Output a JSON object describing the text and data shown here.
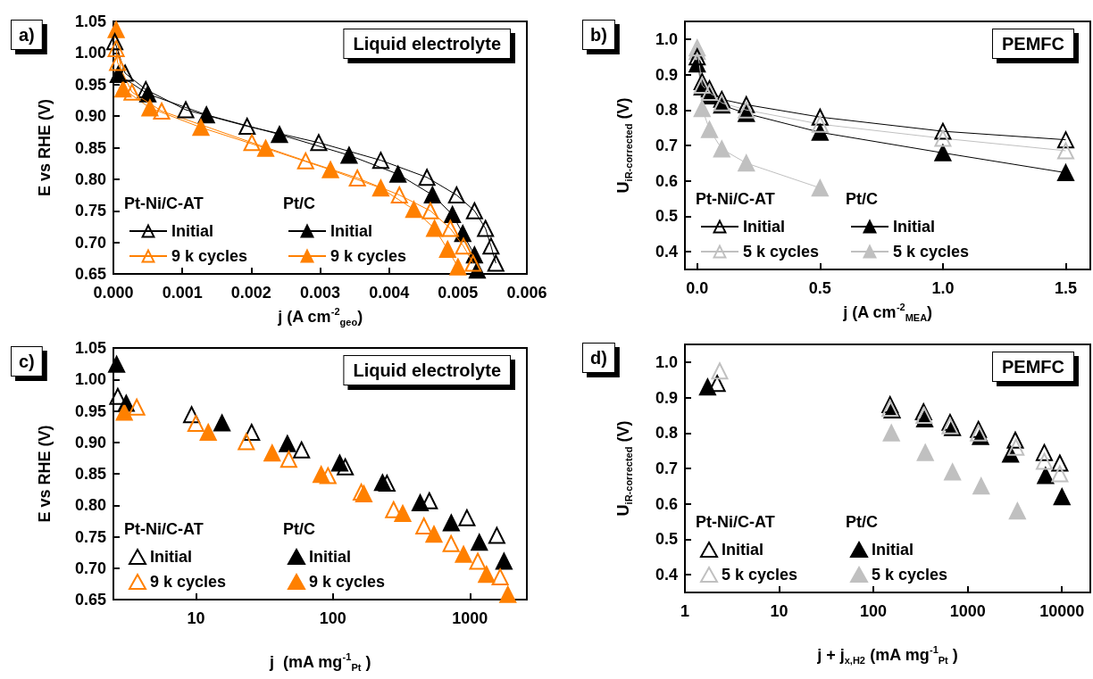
{
  "chart_data": [
    {
      "type": "line",
      "xlabel": "j (A cm$^{-2}$$_{geo}$)",
      "ylabel": "E vs RHE (V)",
      "annotations": [
        "a)",
        "Liquid electrolyte",
        "Pt-Ni/C-AT",
        "Pt/C"
      ],
      "marker": "triangle",
      "legend": "bottom left",
      "grid": false,
      "xlim": [
        0,
        0.006
      ],
      "xticks": [
        {
          "value": 0,
          "label": "0.000"
        },
        {
          "value": 0.001,
          "label": "0.001"
        },
        {
          "value": 0.002,
          "label": "0.002"
        },
        {
          "value": 0.003,
          "label": "0.003"
        },
        {
          "value": 0.004,
          "label": "0.004"
        },
        {
          "value": 0.005,
          "label": "0.005"
        },
        {
          "value": 0.006,
          "label": "0.006"
        }
      ],
      "ylim": [
        0.65,
        1.05
      ],
      "yticks": [
        0.65,
        {
          "value": 0.7,
          "label": "0.70"
        },
        0.75,
        {
          "value": 0.8,
          "label": "0.80"
        },
        0.85,
        {
          "value": 0.9,
          "label": "0.90"
        },
        0.95,
        {
          "value": 1.0,
          "label": "1.00"
        },
        1.05
      ],
      "series": [
        {
          "name": "Initial",
          "color": "#000000",
          "x": [
            2e-05,
            0.00017,
            0.00047,
            0.00105,
            0.00194,
            0.00298,
            0.00388,
            0.00455,
            0.00498,
            0.00524,
            0.0054,
            0.00548,
            0.00555
          ],
          "values": [
            1.018,
            0.968,
            0.942,
            0.91,
            0.884,
            0.858,
            0.83,
            0.803,
            0.775,
            0.75,
            0.722,
            0.694,
            0.667
          ]
        },
        {
          "name": "9 k cycles",
          "color": "#ff8000",
          "x": [
            4e-05,
            6e-05,
            0.00027,
            0.0007,
            0.00201,
            0.00279,
            0.00354,
            0.00415,
            0.0046,
            0.00489,
            0.00508,
            0.00522
          ],
          "values": [
            1.007,
            0.985,
            0.938,
            0.908,
            0.858,
            0.829,
            0.802,
            0.775,
            0.75,
            0.722,
            0.694,
            0.667
          ]
        },
        {
          "name": "Initial",
          "color": "#000000",
          "x": [
            7e-05,
            0.0005,
            0.00135,
            0.00241,
            0.00342,
            0.00413,
            0.00463,
            0.00492,
            0.00507,
            0.00524,
            0.00528
          ],
          "values": [
            0.966,
            0.935,
            0.902,
            0.871,
            0.838,
            0.808,
            0.775,
            0.744,
            0.714,
            0.68,
            0.656
          ]
        },
        {
          "name": "9 k cycles",
          "color": "#ff8000",
          "x": [
            4e-05,
            0.00014,
            0.00053,
            0.00127,
            0.00221,
            0.00315,
            0.00388,
            0.00436,
            0.00466,
            0.00485,
            0.005
          ],
          "values": [
            1.037,
            0.943,
            0.913,
            0.882,
            0.849,
            0.815,
            0.786,
            0.752,
            0.722,
            0.689,
            0.661
          ]
        }
      ]
    },
    {
      "type": "line",
      "xlabel": "j (A cm$^{-2}$$_{MEA}$)",
      "ylabel": "U$_{iR-corrected}$ (V)",
      "annotations": [
        "b)",
        "PEMFC",
        "Pt-Ni/C-AT",
        "Pt/C"
      ],
      "marker": "triangle",
      "legend": "bottom left",
      "grid": false,
      "xlim": [
        -0.05,
        1.6
      ],
      "xticks": [
        {
          "value": 0,
          "label": "0.0"
        },
        0.5,
        {
          "value": 1,
          "label": "1.0"
        },
        1.5
      ],
      "ylim": [
        0.35,
        1.05
      ],
      "yticks": [
        0.4,
        0.5,
        0.6,
        0.7,
        0.8,
        0.9,
        {
          "value": 1.0,
          "label": "1.0"
        }
      ],
      "series": [
        {
          "name": "Initial",
          "color": "#000000",
          "x": [
            0,
            0.02,
            0.05,
            0.1,
            0.2,
            0.5,
            1,
            1.5
          ],
          "values": [
            0.95,
            0.88,
            0.86,
            0.83,
            0.815,
            0.78,
            0.74,
            0.716
          ]
        },
        {
          "name": "5 k cycles",
          "color": "#c0c0c0",
          "x": [
            0,
            0.02,
            0.05,
            0.1,
            0.2,
            0.5,
            1,
            1.5
          ],
          "values": [
            0.975,
            0.87,
            0.85,
            0.82,
            0.8,
            0.76,
            0.72,
            0.685
          ]
        },
        {
          "name": "Initial",
          "color": "#000000",
          "x": [
            0,
            0.02,
            0.05,
            0.1,
            0.2,
            0.5,
            1,
            1.5
          ],
          "values": [
            0.93,
            0.865,
            0.84,
            0.814,
            0.79,
            0.737,
            0.679,
            0.623
          ]
        },
        {
          "name": "5 k cycles",
          "color": "#c0c0c0",
          "x": [
            0,
            0.02,
            0.05,
            0.1,
            0.2,
            0.5
          ],
          "values": [
            0.965,
            0.804,
            0.745,
            0.69,
            0.65,
            0.58
          ]
        }
      ]
    },
    {
      "type": "scatter",
      "xlabel": "j  (mA mg$^{-1}$$_{Pt}$ )",
      "ylabel": "E vs RHE (V)",
      "annotations": [
        "c)",
        "Liquid electrolyte",
        "Pt-Ni/C-AT",
        "Pt/C"
      ],
      "marker": "triangle",
      "legend": "bottom left",
      "grid": false,
      "log": "x",
      "xlim": [
        2.5,
        2600
      ],
      "xticks": [
        10,
        100,
        1000
      ],
      "ylim": [
        0.65,
        1.05
      ],
      "yticks": [
        0.65,
        {
          "value": 0.7,
          "label": "0.70"
        },
        0.75,
        {
          "value": 0.8,
          "label": "0.80"
        },
        0.85,
        {
          "value": 0.9,
          "label": "0.90"
        },
        0.95,
        {
          "value": 1.0,
          "label": "1.00"
        },
        1.05
      ],
      "series": [
        {
          "name": "Initial",
          "color": "#000000",
          "x": [
            2.69,
            9.3,
            25.5,
            59,
            123,
            248,
            505,
            950,
            1570
          ],
          "values": [
            0.973,
            0.944,
            0.916,
            0.888,
            0.861,
            0.835,
            0.807,
            0.78,
            0.752
          ]
        },
        {
          "name": "9 k cycles",
          "color": "#ff8000",
          "x": [
            3.7,
            10,
            23.3,
            47.6,
            92,
            161,
            277,
            461,
            728,
            1140,
            1660
          ],
          "values": [
            0.956,
            0.93,
            0.901,
            0.873,
            0.847,
            0.821,
            0.793,
            0.767,
            0.739,
            0.711,
            0.686
          ]
        },
        {
          "name": "Initial",
          "color": "#000000",
          "x": [
            2.64,
            3.1,
            15.5,
            46.5,
            112,
            230,
            433,
            730,
            1170,
            1770
          ],
          "values": [
            1.024,
            0.962,
            0.931,
            0.898,
            0.867,
            0.836,
            0.804,
            0.772,
            0.741,
            0.711
          ]
        },
        {
          "name": "9 k cycles",
          "color": "#ff8000",
          "x": [
            3.0,
            12.3,
            36,
            82,
            168,
            323,
            546,
            897,
            1320,
            1890
          ],
          "values": [
            0.948,
            0.916,
            0.883,
            0.849,
            0.818,
            0.787,
            0.754,
            0.722,
            0.69,
            0.658
          ]
        }
      ]
    },
    {
      "type": "scatter",
      "xlabel": "j + j$_{x,H2}$ (mA mg$^{-1}$$_{Pt}$ )",
      "ylabel": "U$_{iR-corrected}$ (V)",
      "annotations": [
        "d)",
        "PEMFC",
        "Pt-Ni/C-AT",
        "Pt/C"
      ],
      "marker": "triangle",
      "legend": "bottom left",
      "grid": false,
      "log": "x",
      "xlim": [
        1,
        20000
      ],
      "xticks": [
        1,
        10,
        100,
        1000,
        10000
      ],
      "ylim": [
        0.35,
        1.05
      ],
      "yticks": [
        0.4,
        0.5,
        0.6,
        0.7,
        0.8,
        0.9,
        {
          "value": 1.0,
          "label": "1.0"
        }
      ],
      "series": [
        {
          "name": "Initial",
          "color": "#000000",
          "x": [
            2.2,
            150,
            340,
            650,
            1300,
            3200,
            6500,
            9500
          ],
          "values": [
            0.94,
            0.88,
            0.86,
            0.83,
            0.81,
            0.78,
            0.745,
            0.715
          ]
        },
        {
          "name": "5 k cycles",
          "color": "#c0c0c0",
          "x": [
            2.34,
            150,
            345,
            650,
            1300,
            3250,
            6500,
            9500
          ],
          "values": [
            0.975,
            0.87,
            0.85,
            0.82,
            0.8,
            0.76,
            0.72,
            0.685
          ]
        },
        {
          "name": "Initial",
          "color": "#000000",
          "x": [
            1.74,
            158,
            350,
            690,
            1370,
            2850,
            6700,
            10000
          ],
          "values": [
            0.93,
            0.865,
            0.84,
            0.815,
            0.79,
            0.74,
            0.68,
            0.62
          ]
        },
        {
          "name": "5 k cycles",
          "color": "#c0c0c0",
          "x": [
            155,
            355,
            690,
            1390,
            3370
          ],
          "values": [
            0.8,
            0.745,
            0.69,
            0.65,
            0.58
          ]
        }
      ]
    }
  ]
}
